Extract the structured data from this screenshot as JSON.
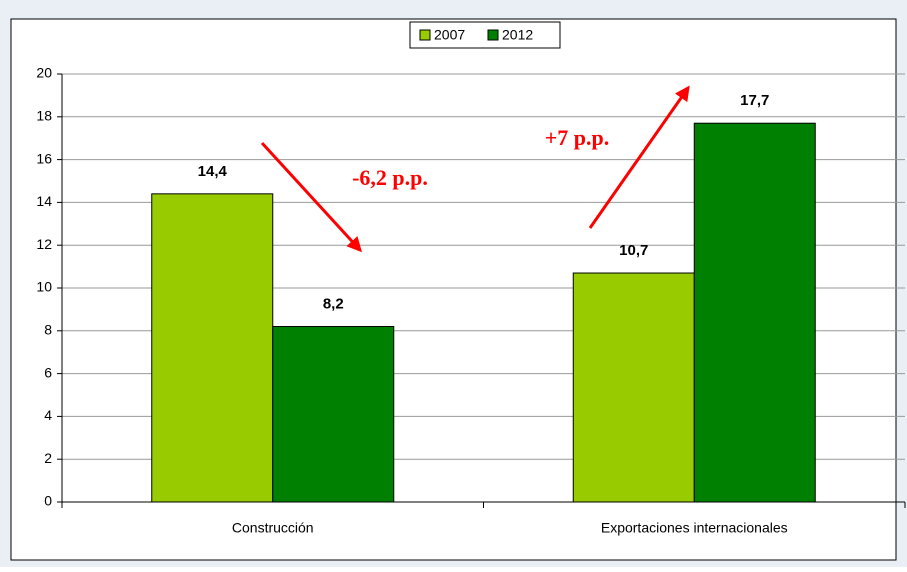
{
  "chart_data": {
    "type": "bar",
    "categories": [
      "Construcción",
      "Exportaciones internacionales"
    ],
    "series": [
      {
        "name": "2007",
        "color": "#99cc00",
        "values": [
          14.4,
          10.7
        ],
        "value_labels": [
          "14,4",
          "10,7"
        ]
      },
      {
        "name": "2012",
        "color": "#008000",
        "values": [
          8.2,
          17.7
        ],
        "value_labels": [
          "8,2",
          "17,7"
        ]
      }
    ],
    "ylim": [
      0,
      20
    ],
    "yticks": [
      0,
      2,
      4,
      6,
      8,
      10,
      12,
      14,
      16,
      18,
      20
    ],
    "grid": true,
    "legend": "top",
    "annotations": [
      {
        "text": "-6,2 p.p.",
        "color": "#ff0000"
      },
      {
        "text": "+7 p.p.",
        "color": "#ff0000"
      }
    ]
  }
}
